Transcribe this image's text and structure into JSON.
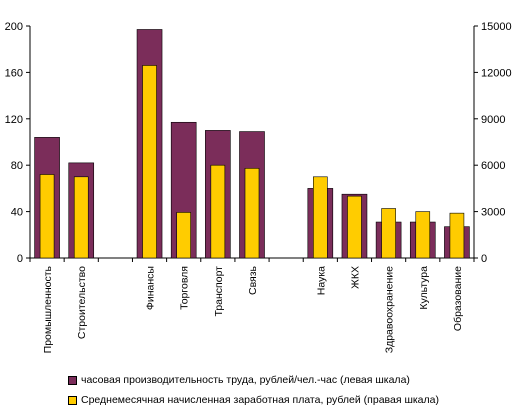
{
  "colors": {
    "productivity": "#7B2D5A",
    "salary": "#FFCC00",
    "axis": "#000000"
  },
  "chart_data": {
    "type": "bar",
    "categories": [
      "Промышленность",
      "Строительство",
      "",
      "Финансы",
      "Торговля",
      "Транспорт",
      "Связь",
      "",
      "Наука",
      "ЖКХ",
      "Здравоохранение",
      "Культура",
      "Образование"
    ],
    "series": [
      {
        "name": "часовая производительность труда, рублей/чел.-час (левая шкала)",
        "axis": "left",
        "values": [
          104,
          82,
          null,
          197,
          117,
          110,
          109,
          null,
          60,
          55,
          31,
          31,
          27
        ]
      },
      {
        "name": "Среднемесячная начисленная заработная плата, рублей (правая шкала)",
        "axis": "right",
        "values": [
          5400,
          5250,
          null,
          12450,
          2950,
          6000,
          5800,
          null,
          5250,
          4000,
          3200,
          3000,
          2900
        ]
      }
    ],
    "ylim_left": [
      0,
      200
    ],
    "yticks_left": [
      0,
      40,
      80,
      120,
      160,
      200
    ],
    "ylim_right": [
      0,
      15000
    ],
    "yticks_right": [
      0,
      3000,
      6000,
      9000,
      12000,
      15000
    ],
    "grid": false,
    "legend_position": "bottom"
  }
}
